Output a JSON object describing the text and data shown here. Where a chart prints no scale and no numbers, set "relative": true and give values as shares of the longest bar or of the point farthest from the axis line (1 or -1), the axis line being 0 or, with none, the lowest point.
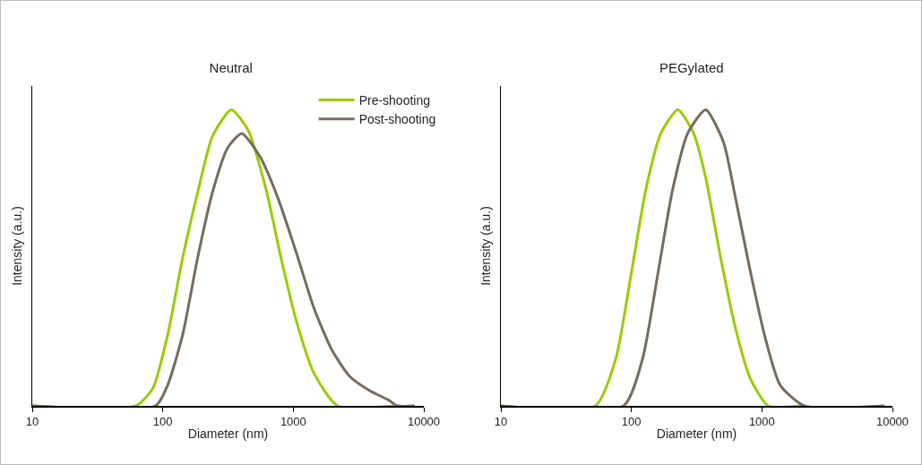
{
  "chart_data": [
    {
      "type": "line",
      "title": "Neutral",
      "xlabel": "Diameter (nm)",
      "ylabel": "Intensity (a.u.)",
      "log": "x",
      "xlim": [
        10,
        10000
      ],
      "xticks": [
        10,
        100,
        1000,
        10000
      ],
      "relative": true,
      "legend": "top right",
      "marker": "none",
      "line_style": "solid",
      "grid": false,
      "series": [
        {
          "name": "Pre-shooting",
          "color": "#99cc00",
          "x": [
            10,
            62,
            84,
            109,
            142,
            185,
            240,
            335,
            452,
            619,
            805,
            1050,
            1440,
            2190,
            5900
          ],
          "values": [
            0,
            0,
            0.06,
            0.24,
            0.5,
            0.72,
            0.91,
            1,
            0.93,
            0.73,
            0.5,
            0.29,
            0.11,
            0,
            0
          ]
        },
        {
          "name": "Post-shooting",
          "color": "#766b5e",
          "x": [
            10,
            88,
            109,
            142,
            185,
            240,
            313,
            403,
            558,
            765,
            1050,
            1440,
            1970,
            2700,
            3900,
            5350,
            6270,
            8500
          ],
          "values": [
            0,
            0,
            0.07,
            0.24,
            0.5,
            0.72,
            0.87,
            0.92,
            0.84,
            0.7,
            0.52,
            0.33,
            0.19,
            0.1,
            0.05,
            0.02,
            0,
            0
          ]
        }
      ]
    },
    {
      "type": "line",
      "title": "PEGylated",
      "xlabel": "Diameter (nm)",
      "ylabel": "Intensity (a.u.)",
      "log": "x",
      "xlim": [
        10,
        10000
      ],
      "xticks": [
        10,
        100,
        1000,
        10000
      ],
      "relative": true,
      "legend": false,
      "marker": "none",
      "line_style": "solid",
      "grid": false,
      "series": [
        {
          "color": "#99cc00",
          "x": [
            10,
            53,
            76,
            100,
            129,
            168,
            227,
            300,
            371,
            483,
            629,
            819,
            1120,
            2000
          ],
          "values": [
            0,
            0,
            0.16,
            0.45,
            0.73,
            0.92,
            1,
            0.92,
            0.77,
            0.5,
            0.26,
            0.09,
            0,
            0
          ]
        },
        {
          "color": "#766b5e",
          "x": [
            10,
            87,
            122,
            160,
            207,
            270,
            371,
            508,
            629,
            819,
            1060,
            1380,
            2110,
            8700
          ],
          "values": [
            0,
            0,
            0.16,
            0.45,
            0.73,
            0.92,
            1,
            0.89,
            0.7,
            0.45,
            0.23,
            0.07,
            0,
            0
          ]
        }
      ]
    }
  ]
}
